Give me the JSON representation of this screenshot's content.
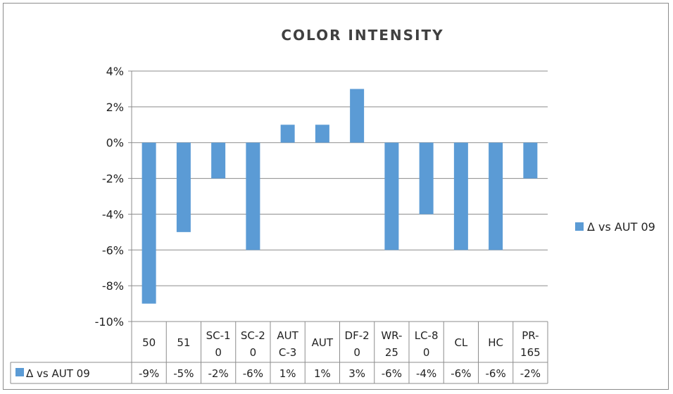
{
  "chart_data": {
    "type": "bar",
    "title": "COLOR INTENSITY",
    "categories": [
      [
        "50"
      ],
      [
        "51"
      ],
      [
        "SC-1",
        "0"
      ],
      [
        "SC-2",
        "0"
      ],
      [
        "AUT",
        "C-3"
      ],
      [
        "AUT"
      ],
      [
        "DF-2",
        "0"
      ],
      [
        "WR-",
        "25"
      ],
      [
        "LC-8",
        "0"
      ],
      [
        "CL"
      ],
      [
        "HC"
      ],
      [
        "PR-",
        "165"
      ]
    ],
    "series": [
      {
        "name": "Δ vs AUT 09",
        "values": [
          -9,
          -5,
          -2,
          -6,
          1,
          1,
          3,
          -6,
          -4,
          -6,
          -6,
          -2
        ],
        "labels": [
          "-9%",
          "-5%",
          "-2%",
          "-6%",
          "1%",
          "1%",
          "3%",
          "-6%",
          "-4%",
          "-6%",
          "-6%",
          "-2%"
        ],
        "color": "#5b9bd5"
      }
    ],
    "yticks": [
      "4%",
      "2%",
      "0%",
      "-2%",
      "-4%",
      "-6%",
      "-8%",
      "-10%"
    ],
    "ytick_values": [
      4,
      2,
      0,
      -2,
      -4,
      -6,
      -8,
      -10
    ],
    "ylim": [
      -10,
      4
    ],
    "grid": true,
    "legend": "right",
    "data_table": true
  }
}
